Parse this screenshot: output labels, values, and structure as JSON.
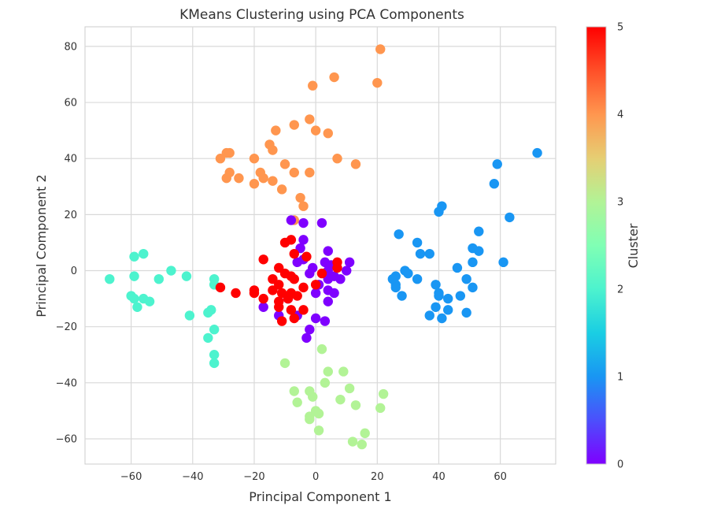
{
  "chart_data": {
    "type": "scatter",
    "title": "KMeans Clustering using PCA Components",
    "xlabel": "Principal Component 1",
    "ylabel": "Principal Component 2",
    "xlim": [
      -75,
      78
    ],
    "ylim": [
      -69,
      87
    ],
    "xticks": [
      -60,
      -40,
      -20,
      0,
      20,
      40,
      60
    ],
    "yticks": [
      -60,
      -40,
      -20,
      0,
      20,
      40,
      60,
      80
    ],
    "grid": true,
    "colorbar": {
      "label": "Cluster",
      "min": 0,
      "max": 5,
      "ticks": [
        0,
        1,
        2,
        3,
        4,
        5
      ],
      "colormap": "rainbow"
    },
    "cluster_colors": [
      "#7f00ff",
      "#1996f3",
      "#4df3ce",
      "#b2f396",
      "#ff964f",
      "#ff0000"
    ],
    "points": [
      {
        "cluster": 4,
        "x": 21,
        "y": 79
      },
      {
        "cluster": 4,
        "x": 20,
        "y": 67
      },
      {
        "cluster": 4,
        "x": 6,
        "y": 69
      },
      {
        "cluster": 4,
        "x": -1,
        "y": 66
      },
      {
        "cluster": 4,
        "x": -2,
        "y": 54
      },
      {
        "cluster": 4,
        "x": -7,
        "y": 52
      },
      {
        "cluster": 4,
        "x": -13,
        "y": 50
      },
      {
        "cluster": 4,
        "x": 0,
        "y": 50
      },
      {
        "cluster": 4,
        "x": 4,
        "y": 49
      },
      {
        "cluster": 4,
        "x": -15,
        "y": 45
      },
      {
        "cluster": 4,
        "x": -14,
        "y": 43
      },
      {
        "cluster": 4,
        "x": -29,
        "y": 42
      },
      {
        "cluster": 4,
        "x": -28,
        "y": 42
      },
      {
        "cluster": 4,
        "x": -31,
        "y": 40
      },
      {
        "cluster": 4,
        "x": -20,
        "y": 40
      },
      {
        "cluster": 4,
        "x": 7,
        "y": 40
      },
      {
        "cluster": 4,
        "x": 13,
        "y": 38
      },
      {
        "cluster": 4,
        "x": -10,
        "y": 38
      },
      {
        "cluster": 4,
        "x": -28,
        "y": 35
      },
      {
        "cluster": 4,
        "x": -18,
        "y": 35
      },
      {
        "cluster": 4,
        "x": -7,
        "y": 35
      },
      {
        "cluster": 4,
        "x": -2,
        "y": 35
      },
      {
        "cluster": 4,
        "x": -29,
        "y": 33
      },
      {
        "cluster": 4,
        "x": -25,
        "y": 33
      },
      {
        "cluster": 4,
        "x": -17,
        "y": 33
      },
      {
        "cluster": 4,
        "x": -14,
        "y": 32
      },
      {
        "cluster": 4,
        "x": -20,
        "y": 31
      },
      {
        "cluster": 4,
        "x": -11,
        "y": 29
      },
      {
        "cluster": 4,
        "x": -5,
        "y": 26
      },
      {
        "cluster": 4,
        "x": -4,
        "y": 23
      },
      {
        "cluster": 4,
        "x": -7,
        "y": 18
      },
      {
        "cluster": 1,
        "x": 72,
        "y": 42
      },
      {
        "cluster": 1,
        "x": 59,
        "y": 38
      },
      {
        "cluster": 1,
        "x": 58,
        "y": 31
      },
      {
        "cluster": 1,
        "x": 41,
        "y": 23
      },
      {
        "cluster": 1,
        "x": 40,
        "y": 21
      },
      {
        "cluster": 1,
        "x": 63,
        "y": 19
      },
      {
        "cluster": 1,
        "x": 27,
        "y": 13
      },
      {
        "cluster": 1,
        "x": 53,
        "y": 14
      },
      {
        "cluster": 1,
        "x": 33,
        "y": 10
      },
      {
        "cluster": 1,
        "x": 51,
        "y": 8
      },
      {
        "cluster": 1,
        "x": 53,
        "y": 7
      },
      {
        "cluster": 1,
        "x": 34,
        "y": 6
      },
      {
        "cluster": 1,
        "x": 37,
        "y": 6
      },
      {
        "cluster": 1,
        "x": 61,
        "y": 3
      },
      {
        "cluster": 1,
        "x": 51,
        "y": 3
      },
      {
        "cluster": 1,
        "x": 46,
        "y": 1
      },
      {
        "cluster": 1,
        "x": 29,
        "y": 0
      },
      {
        "cluster": 1,
        "x": 30,
        "y": -1
      },
      {
        "cluster": 1,
        "x": 26,
        "y": -2
      },
      {
        "cluster": 1,
        "x": 25,
        "y": -3
      },
      {
        "cluster": 1,
        "x": 33,
        "y": -3
      },
      {
        "cluster": 1,
        "x": 49,
        "y": -3
      },
      {
        "cluster": 1,
        "x": 26,
        "y": -5
      },
      {
        "cluster": 1,
        "x": 39,
        "y": -5
      },
      {
        "cluster": 1,
        "x": 51,
        "y": -6
      },
      {
        "cluster": 1,
        "x": 26,
        "y": -6
      },
      {
        "cluster": 1,
        "x": 40,
        "y": -8
      },
      {
        "cluster": 1,
        "x": 28,
        "y": -9
      },
      {
        "cluster": 1,
        "x": 40,
        "y": -9
      },
      {
        "cluster": 1,
        "x": 43,
        "y": -10
      },
      {
        "cluster": 1,
        "x": 47,
        "y": -9
      },
      {
        "cluster": 1,
        "x": 39,
        "y": -13
      },
      {
        "cluster": 1,
        "x": 43,
        "y": -14
      },
      {
        "cluster": 1,
        "x": 49,
        "y": -15
      },
      {
        "cluster": 1,
        "x": 37,
        "y": -16
      },
      {
        "cluster": 1,
        "x": 41,
        "y": -17
      },
      {
        "cluster": 2,
        "x": -56,
        "y": 6
      },
      {
        "cluster": 2,
        "x": -59,
        "y": 5
      },
      {
        "cluster": 2,
        "x": -47,
        "y": 0
      },
      {
        "cluster": 2,
        "x": -59,
        "y": -2
      },
      {
        "cluster": 2,
        "x": -42,
        "y": -2
      },
      {
        "cluster": 2,
        "x": -67,
        "y": -3
      },
      {
        "cluster": 2,
        "x": -51,
        "y": -3
      },
      {
        "cluster": 2,
        "x": -33,
        "y": -3
      },
      {
        "cluster": 2,
        "x": -33,
        "y": -5
      },
      {
        "cluster": 2,
        "x": -60,
        "y": -9
      },
      {
        "cluster": 2,
        "x": -59,
        "y": -10
      },
      {
        "cluster": 2,
        "x": -56,
        "y": -10
      },
      {
        "cluster": 2,
        "x": -54,
        "y": -11
      },
      {
        "cluster": 2,
        "x": -58,
        "y": -13
      },
      {
        "cluster": 2,
        "x": -34,
        "y": -14
      },
      {
        "cluster": 2,
        "x": -35,
        "y": -15
      },
      {
        "cluster": 2,
        "x": -41,
        "y": -16
      },
      {
        "cluster": 2,
        "x": -33,
        "y": -21
      },
      {
        "cluster": 2,
        "x": -35,
        "y": -24
      },
      {
        "cluster": 2,
        "x": -33,
        "y": -30
      },
      {
        "cluster": 2,
        "x": -33,
        "y": -33
      },
      {
        "cluster": 3,
        "x": 2,
        "y": -28
      },
      {
        "cluster": 3,
        "x": -10,
        "y": -33
      },
      {
        "cluster": 3,
        "x": 4,
        "y": -36
      },
      {
        "cluster": 3,
        "x": 9,
        "y": -36
      },
      {
        "cluster": 3,
        "x": 3,
        "y": -40
      },
      {
        "cluster": 3,
        "x": 11,
        "y": -42
      },
      {
        "cluster": 3,
        "x": -2,
        "y": -43
      },
      {
        "cluster": 3,
        "x": -7,
        "y": -43
      },
      {
        "cluster": 3,
        "x": 22,
        "y": -44
      },
      {
        "cluster": 3,
        "x": -1,
        "y": -45
      },
      {
        "cluster": 3,
        "x": 8,
        "y": -46
      },
      {
        "cluster": 3,
        "x": -6,
        "y": -47
      },
      {
        "cluster": 3,
        "x": 13,
        "y": -48
      },
      {
        "cluster": 3,
        "x": 21,
        "y": -49
      },
      {
        "cluster": 3,
        "x": 0,
        "y": -50
      },
      {
        "cluster": 3,
        "x": 1,
        "y": -51
      },
      {
        "cluster": 3,
        "x": -2,
        "y": -52
      },
      {
        "cluster": 3,
        "x": -2,
        "y": -53
      },
      {
        "cluster": 3,
        "x": 1,
        "y": -57
      },
      {
        "cluster": 3,
        "x": 16,
        "y": -58
      },
      {
        "cluster": 3,
        "x": 12,
        "y": -61
      },
      {
        "cluster": 3,
        "x": 15,
        "y": -62
      },
      {
        "cluster": 0,
        "x": -8,
        "y": 18
      },
      {
        "cluster": 0,
        "x": -4,
        "y": 17
      },
      {
        "cluster": 0,
        "x": 2,
        "y": 17
      },
      {
        "cluster": 0,
        "x": -4,
        "y": 11
      },
      {
        "cluster": 0,
        "x": -5,
        "y": 8
      },
      {
        "cluster": 0,
        "x": 4,
        "y": 7
      },
      {
        "cluster": 0,
        "x": -4,
        "y": 4
      },
      {
        "cluster": 0,
        "x": -6,
        "y": 3
      },
      {
        "cluster": 0,
        "x": 3,
        "y": 3
      },
      {
        "cluster": 0,
        "x": 11,
        "y": 3
      },
      {
        "cluster": 0,
        "x": 5,
        "y": 2
      },
      {
        "cluster": 0,
        "x": -1,
        "y": 1
      },
      {
        "cluster": 0,
        "x": 4,
        "y": 0
      },
      {
        "cluster": 0,
        "x": 10,
        "y": 0
      },
      {
        "cluster": 0,
        "x": -2,
        "y": -1
      },
      {
        "cluster": 0,
        "x": 6,
        "y": -2
      },
      {
        "cluster": 0,
        "x": 4,
        "y": -3
      },
      {
        "cluster": 0,
        "x": 8,
        "y": -3
      },
      {
        "cluster": 0,
        "x": 1,
        "y": -5
      },
      {
        "cluster": 0,
        "x": 4,
        "y": -7
      },
      {
        "cluster": 0,
        "x": 6,
        "y": -8
      },
      {
        "cluster": 0,
        "x": 0,
        "y": -8
      },
      {
        "cluster": 0,
        "x": 4,
        "y": -11
      },
      {
        "cluster": 0,
        "x": -9,
        "y": -10
      },
      {
        "cluster": 0,
        "x": -17,
        "y": -13
      },
      {
        "cluster": 0,
        "x": -12,
        "y": -16
      },
      {
        "cluster": 0,
        "x": -6,
        "y": -16
      },
      {
        "cluster": 0,
        "x": 0,
        "y": -17
      },
      {
        "cluster": 0,
        "x": 3,
        "y": -18
      },
      {
        "cluster": 0,
        "x": -2,
        "y": -21
      },
      {
        "cluster": 0,
        "x": -3,
        "y": -24
      },
      {
        "cluster": 5,
        "x": -10,
        "y": 10
      },
      {
        "cluster": 5,
        "x": -8,
        "y": 11
      },
      {
        "cluster": 5,
        "x": -7,
        "y": 6
      },
      {
        "cluster": 5,
        "x": -3,
        "y": 5
      },
      {
        "cluster": 5,
        "x": -17,
        "y": 4
      },
      {
        "cluster": 5,
        "x": -12,
        "y": 1
      },
      {
        "cluster": 5,
        "x": -10,
        "y": -1
      },
      {
        "cluster": 5,
        "x": -8,
        "y": -2
      },
      {
        "cluster": 5,
        "x": 2,
        "y": -1
      },
      {
        "cluster": 5,
        "x": 7,
        "y": 1
      },
      {
        "cluster": 5,
        "x": 7,
        "y": 3
      },
      {
        "cluster": 5,
        "x": -14,
        "y": -3
      },
      {
        "cluster": 5,
        "x": -7,
        "y": -3
      },
      {
        "cluster": 5,
        "x": 0,
        "y": -5
      },
      {
        "cluster": 5,
        "x": -31,
        "y": -6
      },
      {
        "cluster": 5,
        "x": -26,
        "y": -8
      },
      {
        "cluster": 5,
        "x": -20,
        "y": -7
      },
      {
        "cluster": 5,
        "x": -20,
        "y": -8
      },
      {
        "cluster": 5,
        "x": -14,
        "y": -7
      },
      {
        "cluster": 5,
        "x": -12,
        "y": -5
      },
      {
        "cluster": 5,
        "x": -11,
        "y": -8
      },
      {
        "cluster": 5,
        "x": -8,
        "y": -8
      },
      {
        "cluster": 5,
        "x": -4,
        "y": -6
      },
      {
        "cluster": 5,
        "x": -17,
        "y": -10
      },
      {
        "cluster": 5,
        "x": -12,
        "y": -11
      },
      {
        "cluster": 5,
        "x": -9,
        "y": -10
      },
      {
        "cluster": 5,
        "x": -6,
        "y": -9
      },
      {
        "cluster": 5,
        "x": -12,
        "y": -13
      },
      {
        "cluster": 5,
        "x": -8,
        "y": -14
      },
      {
        "cluster": 5,
        "x": -4,
        "y": -14
      },
      {
        "cluster": 5,
        "x": -11,
        "y": -18
      },
      {
        "cluster": 5,
        "x": -7,
        "y": -17
      }
    ]
  }
}
